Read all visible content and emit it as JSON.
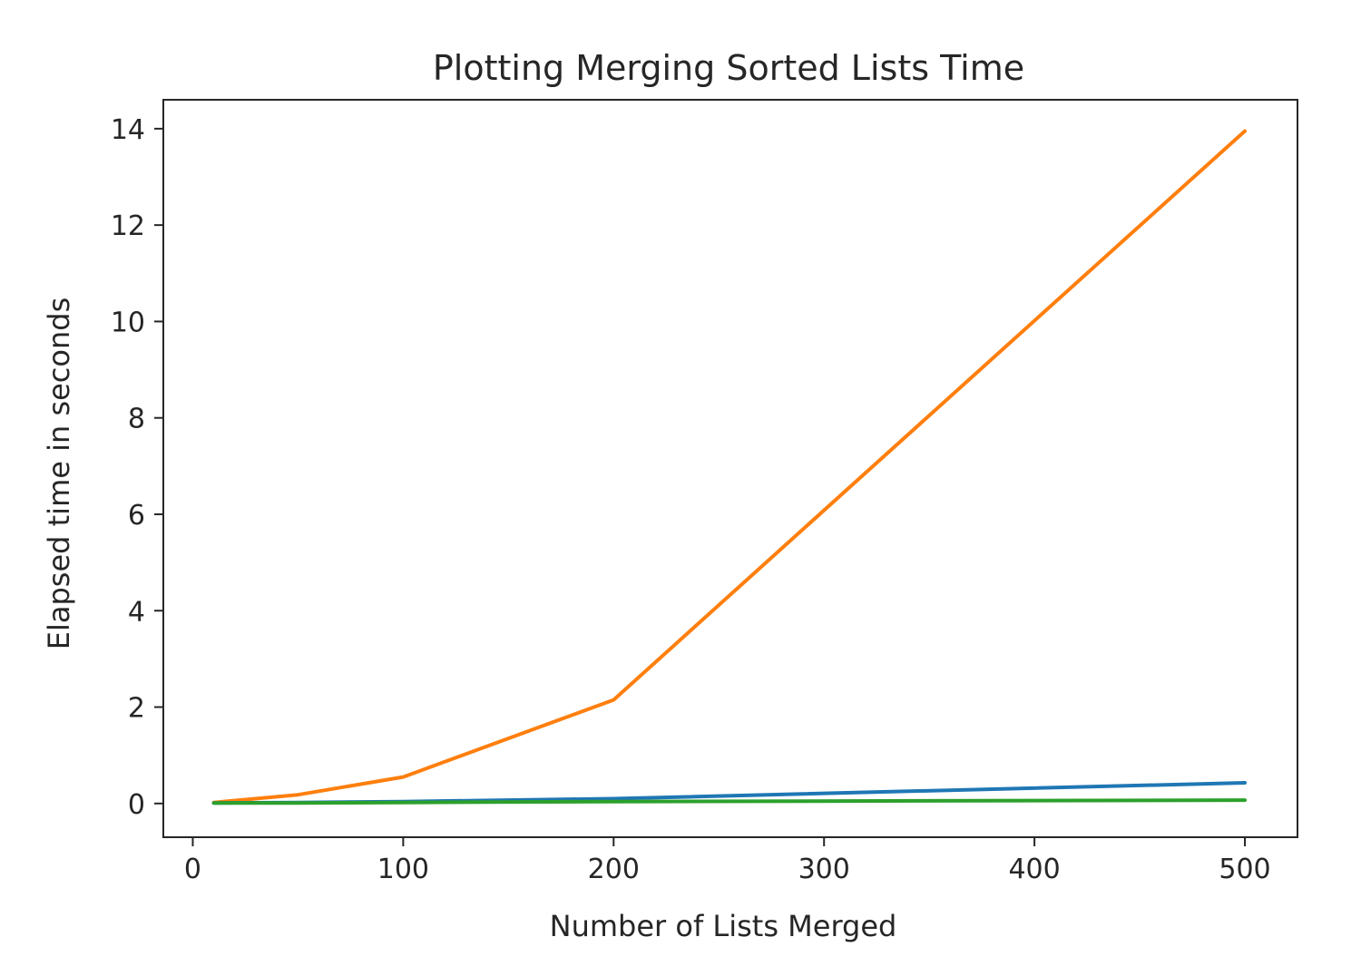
{
  "chart_data": {
    "type": "line",
    "title": "Plotting Merging Sorted Lists Time",
    "xlabel": "Number of Lists Merged",
    "ylabel": "Elapsed time in seconds",
    "xlim": [
      -14,
      525
    ],
    "ylim": [
      -0.7,
      14.6
    ],
    "xticks": [
      0,
      100,
      200,
      300,
      400,
      500
    ],
    "yticks": [
      0,
      2,
      4,
      6,
      8,
      10,
      12,
      14
    ],
    "grid": false,
    "legend": "none",
    "x": [
      10,
      50,
      100,
      200,
      500
    ],
    "series": [
      {
        "color": "#ff7f0e",
        "values": [
          0.02,
          0.18,
          0.55,
          2.15,
          13.95
        ]
      },
      {
        "color": "#1f77b4",
        "values": [
          0.01,
          0.02,
          0.04,
          0.1,
          0.43
        ]
      },
      {
        "color": "#2ca02c",
        "values": [
          0.01,
          0.01,
          0.02,
          0.04,
          0.07
        ]
      }
    ]
  }
}
